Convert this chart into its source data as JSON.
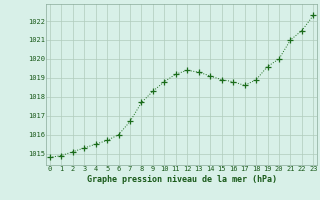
{
  "x": [
    0,
    1,
    2,
    3,
    4,
    5,
    6,
    7,
    8,
    9,
    10,
    11,
    12,
    13,
    14,
    15,
    16,
    17,
    18,
    19,
    20,
    21,
    22,
    23
  ],
  "y": [
    1014.8,
    1014.9,
    1015.1,
    1015.3,
    1015.5,
    1015.7,
    1016.0,
    1016.7,
    1017.7,
    1018.3,
    1018.8,
    1019.2,
    1019.4,
    1019.3,
    1019.1,
    1018.9,
    1018.8,
    1018.6,
    1018.9,
    1019.6,
    1020.0,
    1021.0,
    1021.5,
    1022.3
  ],
  "line_color": "#1a6b1a",
  "marker": "P",
  "marker_size": 2.5,
  "linewidth": 0.7,
  "bg_color": "#d8f0e8",
  "grid_color": "#b0ccbc",
  "xlabel": "Graphe pression niveau de la mer (hPa)",
  "xlabel_fontsize": 6.0,
  "xlabel_color": "#1a5a1a",
  "xlabel_bold": true,
  "ytick_labels": [
    "1015",
    "1016",
    "1017",
    "1018",
    "1019",
    "1020",
    "1021",
    "1022"
  ],
  "ytick_values": [
    1015,
    1016,
    1017,
    1018,
    1019,
    1020,
    1021,
    1022
  ],
  "xtick_labels": [
    "0",
    "1",
    "2",
    "3",
    "4",
    "5",
    "6",
    "7",
    "8",
    "9",
    "10",
    "11",
    "12",
    "13",
    "14",
    "15",
    "16",
    "17",
    "18",
    "19",
    "20",
    "21",
    "22",
    "23"
  ],
  "ylim": [
    1014.4,
    1022.9
  ],
  "xlim": [
    -0.3,
    23.3
  ],
  "tick_fontsize": 5.0,
  "xtick_color": "#1a5a1a",
  "ytick_color": "#1a5a1a",
  "spine_color": "#8aaa99"
}
